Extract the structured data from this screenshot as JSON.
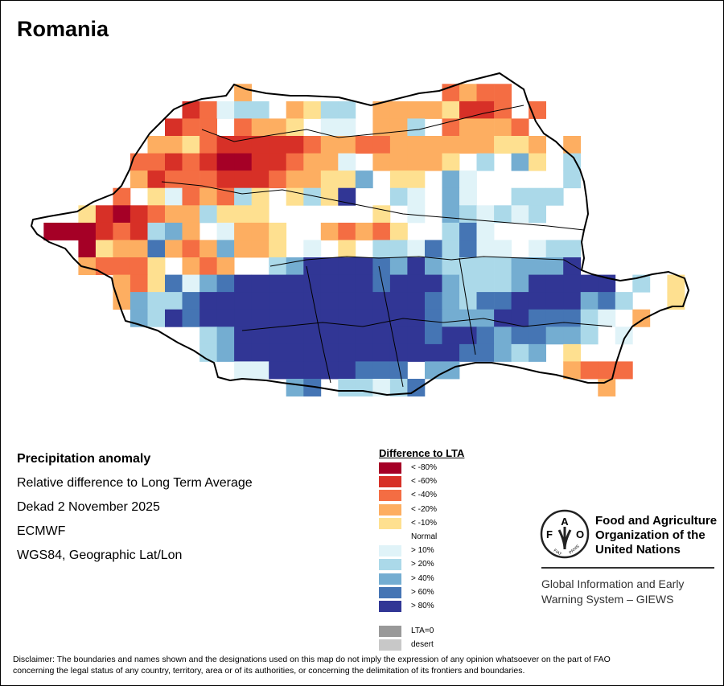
{
  "title": "Romania",
  "info": {
    "heading": "Precipitation anomaly",
    "subtitle": "Relative difference to Long Term Average",
    "period": "Dekad 2 November 2025",
    "source": "ECMWF",
    "projection": "WGS84, Geographic Lat/Lon"
  },
  "legend": {
    "title": "Difference to LTA",
    "items": [
      {
        "code": "8",
        "label": "< -80%",
        "color": "#a50026"
      },
      {
        "code": "6",
        "label": "< -60%",
        "color": "#d73027"
      },
      {
        "code": "4",
        "label": "< -40%",
        "color": "#f46d43"
      },
      {
        "code": "2",
        "label": "< -20%",
        "color": "#fdae61"
      },
      {
        "code": "1",
        "label": "< -10%",
        "color": "#fee090"
      },
      {
        "code": ".",
        "label": "Normal",
        "color": "#ffffff"
      },
      {
        "code": "a",
        "label": "> 10%",
        "color": "#e0f3f8"
      },
      {
        "code": "b",
        "label": "> 20%",
        "color": "#abd9e9"
      },
      {
        "code": "c",
        "label": "> 40%",
        "color": "#74add1"
      },
      {
        "code": "d",
        "label": "> 60%",
        "color": "#4575b4"
      },
      {
        "code": "e",
        "label": "> 80%",
        "color": "#313695"
      },
      {
        "code": "z",
        "label": "LTA=0",
        "color": "#999999"
      },
      {
        "code": "s",
        "label": "desert",
        "color": "#c8c8c8"
      }
    ]
  },
  "map_data": {
    "grid": [
      "...........2...........4244..........",
      "........64abb.21bb.22221664 4........",
      ".......644.4221.aa.22b.42224.........",
      "......22146666642244222222112 2.......",
      ".....446468866422a.22221.b.c1.b......",
      ".....2644466642211c.11.ca.....b......",
      "....4.1a424b1.1b1e..ba.ca..bbb.......",
      "..1686422b111......1.a.cbabab........",
      "888646bc2.a221..24241..bda...........",
      "..8122d242c221.a.1.bbadbdaa.abb......",
      "..24441.242..bceeeedcecbbbbccce......",
      "....241dacdeeeeeeeedeeecbbbceeeee.b.1",
      "....2cbbdeeeeeeeeeeeeedcbddeeeecdb..1",
      ".....cbedeeeeeeeeeeeeedccceedddba.2..",
      ".........bceeeeeeeeeeedeedcddccb.a...",
      ".........bceeeeeeeeeeeeeddcbc.1......",
      "...........aaeeeeeddd cc......2444....",
      "..............cd.bbabd..........2...."
    ]
  },
  "fao": {
    "logo_letters": "FAO FIAT PANIS",
    "name_lines": [
      "Food and Agriculture",
      "Organization of the",
      "United Nations"
    ],
    "giews_lines": [
      "Global Information and Early",
      "Warning System – GIEWS"
    ]
  },
  "disclaimer_lines": [
    "Disclaimer: The boundaries and names shown and the designations used on this map do not imply the expression of any opinion whatsoever on the part of FAO",
    "concerning the legal status of any country, territory, area or of its authorities, or concerning the delimitation of its frontiers and boundaries."
  ]
}
